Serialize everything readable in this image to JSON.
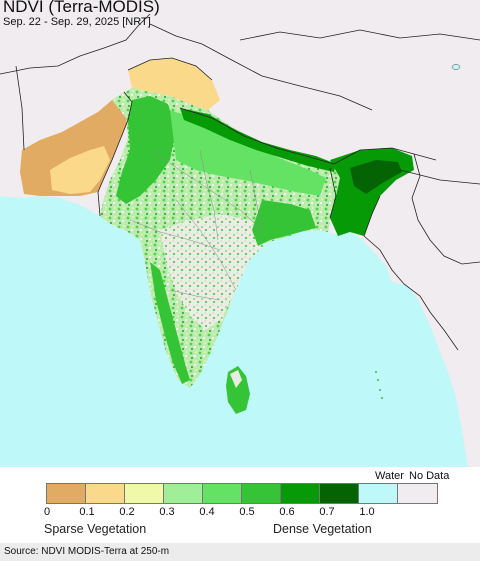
{
  "title": "NDVI (Terra-MODIS)",
  "subtitle": "Sep. 22 - Sep. 29, 2025 [NRT]",
  "colors": {
    "ocean": "#bff8f8",
    "land_outside": "#f0ecf0",
    "border": "#222222"
  },
  "legend": {
    "water_label": "Water",
    "nodata_label": "No Data",
    "ticks": [
      "0",
      "0.1",
      "0.2",
      "0.3",
      "0.4",
      "0.5",
      "0.6",
      "0.7",
      "1.0"
    ],
    "swatches": [
      "#e2ab63",
      "#fbd98b",
      "#f0f9a8",
      "#a0ef98",
      "#64e264",
      "#35c435",
      "#079a07",
      "#046404",
      "#bff8f8",
      "#f0ecf0"
    ],
    "sparse_label": "Sparse Vegetation",
    "dense_label": "Dense Vegetation"
  },
  "source": "Source: NDVI MODIS-Terra at 250-m"
}
